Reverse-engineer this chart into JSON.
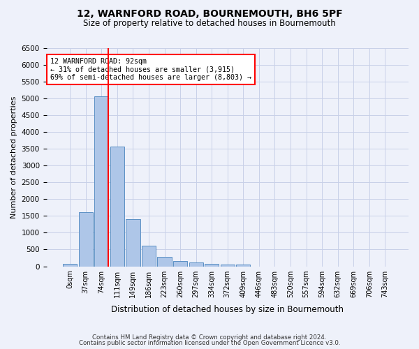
{
  "title1": "12, WARNFORD ROAD, BOURNEMOUTH, BH6 5PF",
  "title2": "Size of property relative to detached houses in Bournemouth",
  "xlabel": "Distribution of detached houses by size in Bournemouth",
  "ylabel": "Number of detached properties",
  "footer1": "Contains HM Land Registry data © Crown copyright and database right 2024.",
  "footer2": "Contains public sector information licensed under the Open Government Licence v3.0.",
  "bin_labels": [
    "0sqm",
    "37sqm",
    "74sqm",
    "111sqm",
    "149sqm",
    "186sqm",
    "223sqm",
    "260sqm",
    "297sqm",
    "334sqm",
    "372sqm",
    "409sqm",
    "446sqm",
    "483sqm",
    "520sqm",
    "557sqm",
    "594sqm",
    "632sqm",
    "669sqm",
    "706sqm",
    "743sqm"
  ],
  "bar_values": [
    70,
    1620,
    5060,
    3570,
    1410,
    620,
    290,
    150,
    110,
    75,
    55,
    55,
    0,
    0,
    0,
    0,
    0,
    0,
    0,
    0,
    0
  ],
  "bar_color": "#aec6e8",
  "bar_edge_color": "#5a8fc4",
  "vline_pos": 2.45,
  "vline_color": "red",
  "annotation_text": "12 WARNFORD ROAD: 92sqm\n← 31% of detached houses are smaller (3,915)\n69% of semi-detached houses are larger (8,803) →",
  "annotation_box_color": "white",
  "annotation_box_edgecolor": "red",
  "ylim": [
    0,
    6500
  ],
  "yticks": [
    0,
    500,
    1000,
    1500,
    2000,
    2500,
    3000,
    3500,
    4000,
    4500,
    5000,
    5500,
    6000,
    6500
  ],
  "bg_color": "#eef1fa",
  "grid_color": "#c8d0e8"
}
